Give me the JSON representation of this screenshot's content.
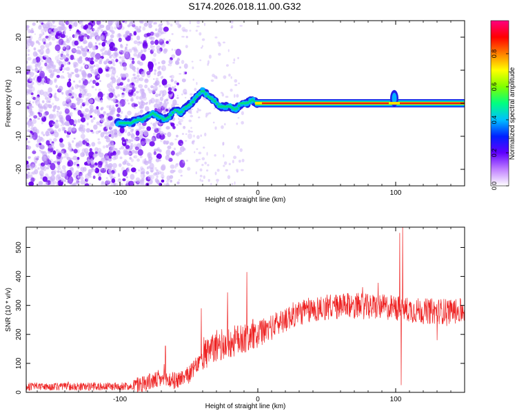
{
  "title": "S174.2026.018.11.00.G32",
  "colors": {
    "snr_line": "#ee2222",
    "ridge_core": "#e01515",
    "ridge_inner": "#ffdd00",
    "ridge_mid": "#00e080",
    "ridge_outer": "#00b0ff",
    "ridge_edge": "#2020e8",
    "noise": "#6a00ee",
    "noise_light": "#cdb3f7"
  },
  "chart_data": [
    {
      "type": "heatmap",
      "id": "spectrogram",
      "xlabel": "Height of straight line (km)",
      "ylabel": "Frequency (Hz)",
      "xlim": [
        -168,
        150
      ],
      "ylim": [
        -25,
        25
      ],
      "xticks": [
        "-100",
        "0",
        "100"
      ],
      "xtick_values": [
        -100,
        0,
        100
      ],
      "yticks": [
        "20",
        "10",
        "0",
        "-10",
        "-20"
      ],
      "ytick_values": [
        20,
        10,
        0,
        -10,
        -20
      ],
      "colorbar": {
        "label": "Normalized spectral amplitude",
        "range": [
          0,
          1
        ],
        "ticks": [
          "0.0",
          "0.2",
          "0.4",
          "0.6",
          "0.8"
        ],
        "tick_values": [
          0.0,
          0.2,
          0.4,
          0.6,
          0.8
        ],
        "colormap": [
          "#ffffff",
          "#c080ff",
          "#6000ff",
          "#0020ff",
          "#00c0ff",
          "#00ff80",
          "#80ff00",
          "#ffff00",
          "#ff8000",
          "#ff0000",
          "#ff0080"
        ]
      },
      "ridge": {
        "x": [
          -102,
          -92,
          -88,
          -84,
          -80,
          -76,
          -72,
          -68,
          -64,
          -60,
          -56,
          -52,
          -48,
          -44,
          -40,
          -36,
          -32,
          -28,
          -24,
          -20,
          -16,
          -12,
          -8,
          -4,
          0,
          10,
          30,
          60,
          90,
          95,
          98,
          100,
          102,
          105,
          120,
          150
        ],
        "y": [
          -6,
          -6,
          -5,
          -5,
          -4,
          -3,
          -4,
          -5,
          -4,
          -2,
          -3,
          -1,
          0,
          2,
          4,
          2,
          1,
          -1,
          -1,
          -1,
          -2,
          0,
          0,
          1,
          0,
          0,
          0,
          0,
          0,
          -1,
          2,
          0,
          -1,
          0,
          0,
          0
        ]
      },
      "noise_region": {
        "x_from": -168,
        "x_to": -60,
        "dense_until": -90
      }
    },
    {
      "type": "line",
      "id": "snr",
      "xlabel": "Height of straight line (km)",
      "ylabel": "SNR (10 * v/v)",
      "xlim": [
        -168,
        150
      ],
      "ylim": [
        0,
        570
      ],
      "xticks": [
        "-100",
        "0",
        "100"
      ],
      "xtick_values": [
        -100,
        0,
        100
      ],
      "yticks": [
        "0",
        "100",
        "200",
        "300",
        "400",
        "500"
      ],
      "ytick_values": [
        0,
        100,
        200,
        300,
        400,
        500
      ],
      "trend": {
        "x": [
          -168,
          -140,
          -110,
          -90,
          -80,
          -70,
          -60,
          -50,
          -40,
          -30,
          -20,
          -10,
          0,
          10,
          20,
          30,
          40,
          50,
          60,
          70,
          80,
          90,
          100,
          110,
          120,
          130,
          140,
          150
        ],
        "y": [
          20,
          20,
          20,
          22,
          35,
          45,
          40,
          60,
          120,
          160,
          170,
          190,
          200,
          225,
          255,
          275,
          285,
          295,
          295,
          300,
          295,
          295,
          290,
          285,
          280,
          280,
          280,
          280
        ]
      },
      "spikes": [
        {
          "x": -67,
          "y": 160
        },
        {
          "x": -41,
          "y": 290
        },
        {
          "x": -22,
          "y": 345
        },
        {
          "x": -8,
          "y": 415
        },
        {
          "x": 103,
          "y": 550
        },
        {
          "x": 105,
          "y": 570
        },
        {
          "x": 104,
          "y": 25
        },
        {
          "x": 130,
          "y": 180
        }
      ]
    }
  ]
}
